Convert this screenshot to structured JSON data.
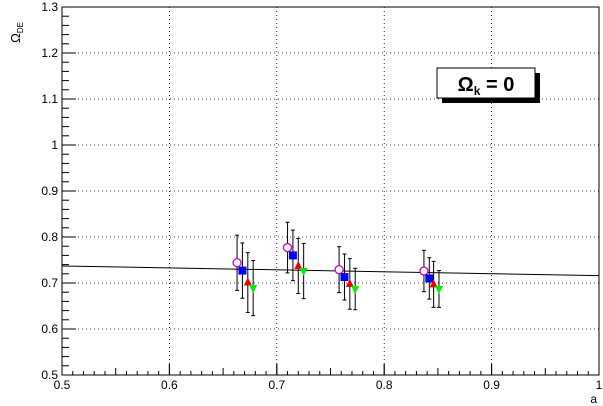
{
  "chart_data": {
    "type": "scatter",
    "title": "",
    "xlabel": "a",
    "ylabel": "Ω",
    "ylabel_sub": "DE",
    "xlim": [
      0.5,
      1.0
    ],
    "ylim": [
      0.5,
      1.3
    ],
    "x_ticks": [
      {
        "value": 0.5,
        "label": "0.5"
      },
      {
        "value": 0.6,
        "label": "0.6"
      },
      {
        "value": 0.7,
        "label": "0.7"
      },
      {
        "value": 0.8,
        "label": "0.8"
      },
      {
        "value": 0.9,
        "label": "0.9"
      },
      {
        "value": 1.0,
        "label": "1"
      }
    ],
    "y_ticks": [
      {
        "value": 0.5,
        "label": "0.5"
      },
      {
        "value": 0.6,
        "label": "0.6"
      },
      {
        "value": 0.7,
        "label": "0.7"
      },
      {
        "value": 0.8,
        "label": "0.8"
      },
      {
        "value": 0.9,
        "label": "0.9"
      },
      {
        "value": 1.0,
        "label": "1"
      },
      {
        "value": 1.1,
        "label": "1.1"
      },
      {
        "value": 1.2,
        "label": "1.2"
      },
      {
        "value": 1.3,
        "label": "1.3"
      }
    ],
    "grid": true,
    "legend_box": {
      "symbol": "Ω",
      "subscript": "k",
      "suffix": " = 0",
      "placement": "top-right"
    },
    "fit_line": {
      "x": [
        0.5,
        1.0
      ],
      "y": [
        0.737,
        0.716
      ],
      "color": "#000000"
    },
    "series": [
      {
        "marker": "open-circle",
        "color": "#cc00cc",
        "points": [
          {
            "x": 0.663,
            "y": 0.744,
            "err": 0.06
          },
          {
            "x": 0.71,
            "y": 0.777,
            "err": 0.055
          },
          {
            "x": 0.758,
            "y": 0.729,
            "err": 0.05
          },
          {
            "x": 0.837,
            "y": 0.726,
            "err": 0.045
          }
        ]
      },
      {
        "marker": "filled-square",
        "color": "#0000ee",
        "points": [
          {
            "x": 0.668,
            "y": 0.727,
            "err": 0.06
          },
          {
            "x": 0.715,
            "y": 0.76,
            "err": 0.055
          },
          {
            "x": 0.763,
            "y": 0.713,
            "err": 0.05
          },
          {
            "x": 0.842,
            "y": 0.71,
            "err": 0.045
          }
        ]
      },
      {
        "marker": "filled-triangle-up",
        "color": "#ee0000",
        "points": [
          {
            "x": 0.673,
            "y": 0.701,
            "err": 0.065
          },
          {
            "x": 0.72,
            "y": 0.737,
            "err": 0.06
          },
          {
            "x": 0.768,
            "y": 0.698,
            "err": 0.055
          },
          {
            "x": 0.846,
            "y": 0.697,
            "err": 0.05
          }
        ]
      },
      {
        "marker": "filled-triangle-down",
        "color": "#00ee00",
        "points": [
          {
            "x": 0.678,
            "y": 0.689,
            "err": 0.06
          },
          {
            "x": 0.725,
            "y": 0.726,
            "err": 0.06
          },
          {
            "x": 0.773,
            "y": 0.687,
            "err": 0.045
          },
          {
            "x": 0.851,
            "y": 0.687,
            "err": 0.04
          }
        ]
      }
    ]
  }
}
